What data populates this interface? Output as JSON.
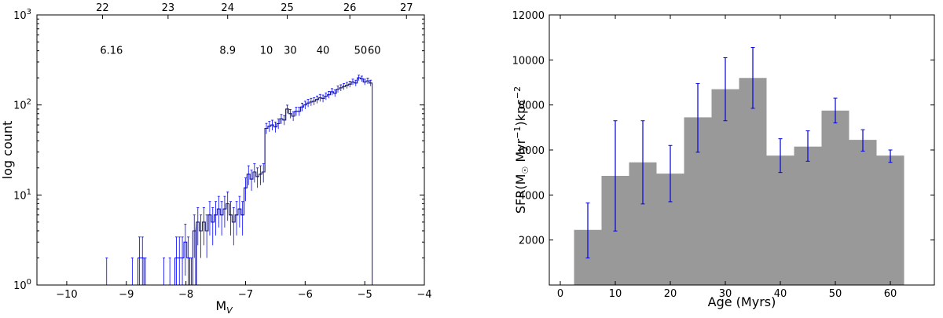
{
  "chart_data": [
    {
      "type": "line",
      "style": "step-histogram",
      "ylabel": "log count",
      "xlabel_main": "M",
      "xlabel_sub": "V",
      "xlim": [
        -10.5,
        -4
      ],
      "ylim": [
        1,
        1000
      ],
      "yscale": "log",
      "x_ticks": [
        -10,
        -9,
        -8,
        -7,
        -6,
        -5,
        -4
      ],
      "x_tick_labels": [
        "−10",
        "−9",
        "−8",
        "−7",
        "−6",
        "−5",
        "−4"
      ],
      "y_ticks": [
        1,
        10,
        100,
        1000
      ],
      "y_tick_base": [
        "10",
        "10",
        "10",
        "10"
      ],
      "y_tick_exp": [
        "0",
        "1",
        "2",
        "3"
      ],
      "top_axis": {
        "ticks": [
          -9.4,
          -8.3,
          -7.3,
          -6.3,
          -5.25,
          -4.3
        ],
        "labels": [
          "22",
          "23",
          "24",
          "25",
          "26",
          "27"
        ]
      },
      "annotations": [
        {
          "x": -9.25,
          "y": 400,
          "text": "6.16"
        },
        {
          "x": -7.3,
          "y": 400,
          "text": "8.9"
        },
        {
          "x": -6.65,
          "y": 400,
          "text": "10"
        },
        {
          "x": -6.25,
          "y": 400,
          "text": "30"
        },
        {
          "x": -5.7,
          "y": 400,
          "text": "40"
        },
        {
          "x": -5.07,
          "y": 400,
          "text": "50"
        },
        {
          "x": -4.84,
          "y": 400,
          "text": "60"
        }
      ],
      "color": "#0000ff",
      "bins": {
        "x": [
          -9.33,
          -8.9,
          -8.78,
          -8.73,
          -8.68,
          -8.37,
          -8.27,
          -8.16,
          -8.11,
          -8.06,
          -8.01,
          -7.96,
          -7.91,
          -7.86,
          -7.8,
          -7.75,
          -7.7,
          -7.65,
          -7.6,
          -7.55,
          -7.5,
          -7.45,
          -7.4,
          -7.35,
          -7.3,
          -7.25,
          -7.2,
          -7.15,
          -7.1,
          -7.05,
          -7.0,
          -6.95,
          -6.9,
          -6.85,
          -6.8,
          -6.75,
          -6.7,
          -6.65,
          -6.6,
          -6.55,
          -6.5,
          -6.45,
          -6.4,
          -6.35,
          -6.3,
          -6.25,
          -6.2,
          -6.15,
          -6.1,
          -6.05,
          -6.0,
          -5.95,
          -5.9,
          -5.85,
          -5.8,
          -5.75,
          -5.7,
          -5.65,
          -5.6,
          -5.55,
          -5.5,
          -5.45,
          -5.4,
          -5.35,
          -5.3,
          -5.25,
          -5.2,
          -5.15,
          -5.1,
          -5.05,
          -5.0,
          -4.95,
          -4.9,
          -4.85
        ],
        "count": [
          1,
          1,
          2,
          2,
          1,
          1,
          1,
          2,
          2,
          2,
          3,
          2,
          1,
          4,
          5,
          4,
          5,
          4,
          6,
          5,
          6,
          7,
          6,
          7,
          8,
          6,
          5,
          6,
          7,
          6,
          12,
          17,
          15,
          18,
          16,
          17,
          18,
          55,
          58,
          60,
          57,
          62,
          70,
          68,
          90,
          80,
          75,
          85,
          85,
          95,
          100,
          105,
          108,
          110,
          115,
          120,
          118,
          125,
          130,
          140,
          135,
          150,
          155,
          160,
          165,
          170,
          180,
          175,
          200,
          195,
          180,
          185,
          175,
          1
        ]
      }
    },
    {
      "type": "bar",
      "xlabel": "Age (Myrs)",
      "ylabel_prefix": "SFR(M",
      "ylabel_sun": "☉",
      "ylabel_mid": " Myr",
      "ylabel_exp1": "−1",
      "ylabel_unit": ")kpc",
      "ylabel_exp2": "−2",
      "xlim": [
        -2,
        68
      ],
      "ylim": [
        0,
        12000
      ],
      "x_ticks": [
        0,
        10,
        20,
        30,
        40,
        50,
        60
      ],
      "x_tick_labels": [
        "0",
        "10",
        "20",
        "30",
        "40",
        "50",
        "60"
      ],
      "y_ticks": [
        2000,
        4000,
        6000,
        8000,
        10000,
        12000
      ],
      "y_tick_labels": [
        "2000",
        "4000",
        "6000",
        "8000",
        "10000",
        "12000"
      ],
      "bar_color": "#999999",
      "error_color": "#0000dd",
      "bar_width": 5,
      "x": [
        5,
        10,
        15,
        20,
        25,
        30,
        35,
        40,
        45,
        50,
        55,
        60
      ],
      "values": [
        2450,
        4850,
        5450,
        4950,
        7450,
        8700,
        9200,
        5750,
        6150,
        7750,
        6450,
        5750
      ],
      "err_low": [
        1200,
        2400,
        3600,
        3700,
        5900,
        7300,
        7850,
        5000,
        5500,
        7200,
        5950,
        5450
      ],
      "err_high": [
        3650,
        7300,
        7300,
        6200,
        8950,
        10100,
        10550,
        6500,
        6850,
        8300,
        6900,
        6000
      ]
    }
  ]
}
